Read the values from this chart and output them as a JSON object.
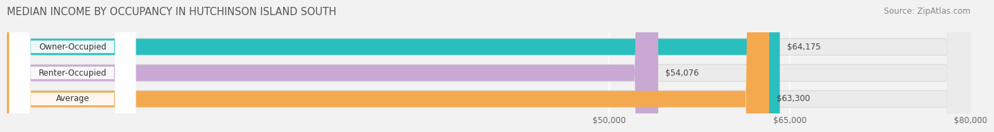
{
  "title": "MEDIAN INCOME BY OCCUPANCY IN HUTCHINSON ISLAND SOUTH",
  "source": "Source: ZipAtlas.com",
  "categories": [
    "Owner-Occupied",
    "Renter-Occupied",
    "Average"
  ],
  "values": [
    64175,
    54076,
    63300
  ],
  "bar_colors": [
    "#2abfbf",
    "#c9a8d4",
    "#f5a94e"
  ],
  "bar_labels": [
    "$64,175",
    "$54,076",
    "$63,300"
  ],
  "xlim": [
    0,
    80000
  ],
  "xticks": [
    50000,
    65000,
    80000
  ],
  "xtick_labels": [
    "$50,000",
    "$65,000",
    "$80,000"
  ],
  "background_color": "#f2f2f2",
  "bar_bg_color": "#ebebeb",
  "title_fontsize": 10.5,
  "source_fontsize": 8.5,
  "label_fontsize": 8.5,
  "value_fontsize": 8.5,
  "bar_height": 0.62,
  "label_pill_color": "#ffffff",
  "grid_color": "#ffffff",
  "shadow_color": "#cccccc"
}
